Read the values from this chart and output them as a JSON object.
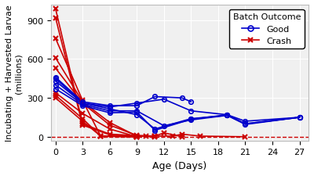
{
  "title": "",
  "xlabel": "Age (Days)",
  "ylabel": "Incubating + Harvested Larvae\n(millions)",
  "xlim": [
    -0.5,
    28
  ],
  "ylim": [
    -30,
    1020
  ],
  "yticks": [
    0,
    300,
    600,
    900
  ],
  "xticks": [
    0,
    3,
    6,
    9,
    12,
    15,
    18,
    21,
    24,
    27
  ],
  "good_color": "#0000cc",
  "crash_color": "#cc0000",
  "dashed_color": "#cc0000",
  "good_series": [
    [
      [
        0,
        460
      ],
      [
        3,
        270
      ],
      [
        6,
        240
      ],
      [
        9,
        240
      ],
      [
        11,
        310
      ],
      [
        14,
        300
      ],
      [
        15,
        270
      ]
    ],
    [
      [
        0,
        450
      ],
      [
        3,
        260
      ],
      [
        6,
        230
      ],
      [
        9,
        260
      ],
      [
        12,
        290
      ],
      [
        15,
        200
      ],
      [
        19,
        170
      ],
      [
        21,
        120
      ],
      [
        27,
        150
      ]
    ],
    [
      [
        0,
        430
      ],
      [
        3,
        260
      ],
      [
        9,
        170
      ],
      [
        11,
        60
      ],
      [
        15,
        140
      ],
      [
        19,
        165
      ],
      [
        21,
        100
      ],
      [
        27,
        150
      ]
    ],
    [
      [
        0,
        400
      ],
      [
        3,
        250
      ],
      [
        6,
        200
      ],
      [
        9,
        200
      ],
      [
        12,
        85
      ],
      [
        15,
        130
      ],
      [
        19,
        165
      ],
      [
        21,
        95
      ],
      [
        27,
        150
      ]
    ],
    [
      [
        0,
        370
      ],
      [
        3,
        240
      ],
      [
        6,
        185
      ],
      [
        9,
        190
      ],
      [
        11,
        50
      ],
      [
        15,
        135
      ],
      [
        19,
        170
      ],
      [
        21,
        100
      ],
      [
        27,
        150
      ]
    ]
  ],
  "crash_series": [
    [
      [
        0,
        990
      ],
      [
        3,
        100
      ],
      [
        6,
        20
      ],
      [
        10,
        5
      ]
    ],
    [
      [
        0,
        920
      ],
      [
        3,
        90
      ],
      [
        6,
        15
      ],
      [
        9,
        5
      ],
      [
        11,
        0
      ]
    ],
    [
      [
        0,
        760
      ],
      [
        3,
        280
      ],
      [
        5,
        5
      ],
      [
        9,
        0
      ]
    ],
    [
      [
        0,
        610
      ],
      [
        3,
        270
      ],
      [
        6,
        110
      ],
      [
        9,
        5
      ],
      [
        11,
        5
      ],
      [
        12,
        30
      ],
      [
        14,
        0
      ]
    ],
    [
      [
        0,
        530
      ],
      [
        3,
        260
      ],
      [
        6,
        90
      ],
      [
        9,
        10
      ],
      [
        11,
        5
      ],
      [
        13,
        5
      ],
      [
        14,
        20
      ],
      [
        16,
        5
      ],
      [
        21,
        0
      ]
    ],
    [
      [
        0,
        340
      ],
      [
        3,
        180
      ],
      [
        6,
        60
      ],
      [
        9,
        0
      ]
    ],
    [
      [
        0,
        320
      ],
      [
        3,
        140
      ],
      [
        5,
        5
      ],
      [
        9,
        0
      ]
    ],
    [
      [
        0,
        300
      ],
      [
        3,
        120
      ],
      [
        5,
        5
      ],
      [
        9,
        0
      ]
    ]
  ],
  "legend_title": "Batch Outcome",
  "legend_good": "Good",
  "legend_crash": "Crash"
}
